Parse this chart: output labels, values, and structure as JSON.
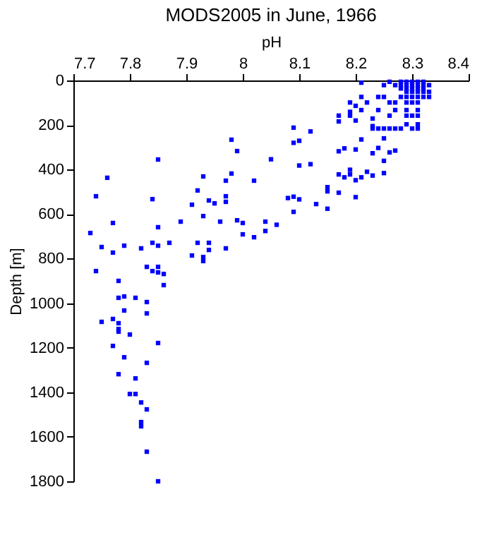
{
  "chart_data": {
    "type": "scatter",
    "title": "MODS2005 in June, 1966",
    "xlabel": "pH",
    "ylabel": "Depth [m]",
    "xlim": [
      7.7,
      8.4
    ],
    "xticks": [
      7.7,
      7.8,
      7.9,
      8,
      8.1,
      8.2,
      8.3,
      8.4
    ],
    "ylim": [
      1800,
      0
    ],
    "yticks": [
      0,
      200,
      400,
      600,
      800,
      1000,
      1200,
      1400,
      1600,
      1800
    ],
    "grid": false,
    "marker": "square",
    "series": [
      {
        "color": "#0000ff",
        "x": [
          7.98,
          7.99,
          7.85,
          7.76,
          7.98,
          7.93,
          8.02,
          7.97,
          7.74,
          7.92,
          7.97,
          7.84,
          7.91,
          7.94,
          7.95,
          7.97,
          7.77,
          7.85,
          7.89,
          7.93,
          7.96,
          7.99,
          8.0,
          7.73,
          8.0,
          8.02,
          7.75,
          7.79,
          7.82,
          7.84,
          7.85,
          7.87,
          7.92,
          7.94,
          7.94,
          7.77,
          7.91,
          7.93,
          7.97,
          7.93,
          7.74,
          7.83,
          7.84,
          7.85,
          7.85,
          7.86,
          7.86,
          7.78,
          7.78,
          7.79,
          7.81,
          7.83,
          7.79,
          7.83,
          7.75,
          7.77,
          7.78,
          7.78,
          7.78,
          7.8,
          7.77,
          7.85,
          7.79,
          7.83,
          7.78,
          7.81,
          7.8,
          7.81,
          7.82,
          7.83,
          7.82,
          7.82,
          7.83,
          7.85,
          8.26,
          8.28,
          8.29,
          8.3,
          8.31,
          8.32,
          8.25,
          8.27,
          8.28,
          8.29,
          8.3,
          8.31,
          8.32,
          8.33,
          8.28,
          8.29,
          8.3,
          8.31,
          8.32,
          8.29,
          8.3,
          8.31,
          8.32,
          8.33,
          8.24,
          8.25,
          8.28,
          8.29,
          8.3,
          8.31,
          8.32,
          8.33,
          8.22,
          8.26,
          8.27,
          8.29,
          8.3,
          8.31,
          8.21,
          8.24,
          8.27,
          8.29,
          8.31,
          8.19,
          8.26,
          8.29,
          8.3,
          8.31,
          8.29,
          8.31,
          8.23,
          8.24,
          8.25,
          8.26,
          8.27,
          8.28,
          8.3,
          8.31,
          8.21,
          8.21,
          8.19,
          8.2,
          8.19,
          8.17,
          8.17,
          8.2,
          8.23,
          8.23,
          8.25,
          8.21,
          8.18,
          8.17,
          8.2,
          8.23,
          8.24,
          8.26,
          8.27,
          8.25,
          8.22,
          8.21,
          8.19,
          8.18,
          8.17,
          8.23,
          8.25,
          8.2,
          8.19,
          8.15,
          8.15,
          8.17,
          8.2,
          8.13,
          8.15,
          8.09,
          8.12,
          8.09,
          8.1,
          8.05,
          8.1,
          8.12,
          8.08,
          8.09,
          8.1,
          8.09,
          8.04,
          8.06,
          8.04
        ],
        "values": [
          266,
          317,
          355,
          437,
          418,
          431,
          450,
          450,
          520,
          494,
          520,
          533,
          558,
          539,
          552,
          545,
          640,
          659,
          634,
          609,
          634,
          628,
          640,
          685,
          691,
          704,
          748,
          742,
          754,
          729,
          742,
          729,
          729,
          729,
          761,
          773,
          786,
          793,
          754,
          811,
          856,
          837,
          856,
          837,
          862,
          869,
          919,
          900,
          976,
          970,
          976,
          995,
          1033,
          1046,
          1084,
          1071,
          1090,
          1116,
          1128,
          1141,
          1192,
          1179,
          1243,
          1268,
          1319,
          1338,
          1408,
          1408,
          1446,
          1477,
          1534,
          1553,
          1667,
          1800,
          6,
          6,
          6,
          6,
          6,
          6,
          21,
          21,
          21,
          21,
          21,
          21,
          21,
          21,
          36,
          36,
          36,
          36,
          36,
          51,
          51,
          51,
          51,
          51,
          74,
          74,
          74,
          74,
          74,
          74,
          74,
          74,
          99,
          99,
          99,
          99,
          99,
          99,
          133,
          133,
          133,
          133,
          133,
          158,
          158,
          158,
          158,
          158,
          197,
          197,
          216,
          216,
          216,
          216,
          216,
          216,
          216,
          216,
          10,
          74,
          99,
          114,
          141,
          158,
          184,
          180,
          171,
          205,
          260,
          265,
          305,
          318,
          310,
          327,
          303,
          323,
          315,
          361,
          410,
          435,
          422,
          435,
          422,
          427,
          416,
          448,
          401,
          479,
          498,
          504,
          524,
          555,
          576,
          212,
          229,
          280,
          271,
          354,
          382,
          376,
          528,
          522,
          534,
          590,
          634,
          648,
          676
        ]
      }
    ]
  }
}
